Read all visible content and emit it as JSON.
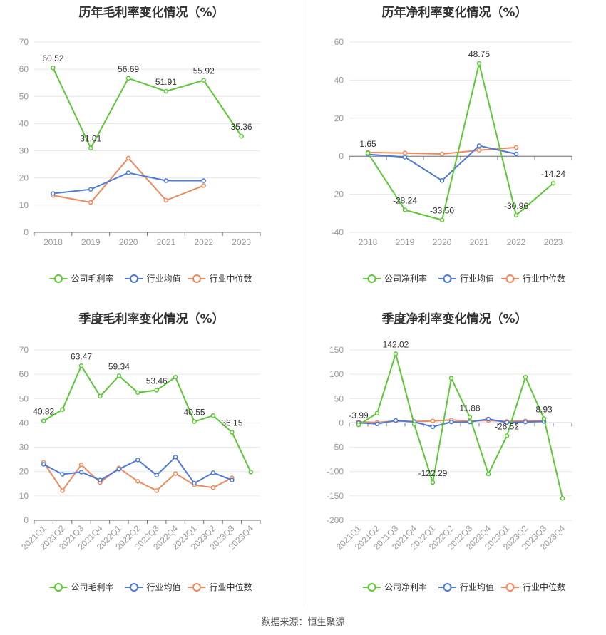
{
  "footer": {
    "source": "数据来源：恒生聚源"
  },
  "chart_data": [
    {
      "type": "line",
      "title": "历年毛利率变化情况（%）",
      "categories": [
        "2018",
        "2019",
        "2020",
        "2021",
        "2022",
        "2023"
      ],
      "ylim": [
        0,
        70
      ],
      "yticks": [
        0,
        10,
        20,
        30,
        40,
        50,
        60,
        70
      ],
      "legend_position": "bottom",
      "grid": true,
      "series": [
        {
          "name": "公司毛利率",
          "color": "#5cc836",
          "values": [
            60.52,
            31.01,
            56.69,
            51.91,
            55.92,
            35.36
          ],
          "labels": [
            "60.52",
            "31.01",
            "56.69",
            "51.91",
            "55.92",
            "35.36"
          ]
        },
        {
          "name": "行业均值",
          "color": "#4b7ad8",
          "values": [
            14.3,
            15.8,
            21.9,
            19.0,
            19.0,
            null
          ]
        },
        {
          "name": "行业中位数",
          "color": "#f0885a",
          "values": [
            13.6,
            11.0,
            27.3,
            11.8,
            17.2,
            null
          ]
        }
      ]
    },
    {
      "type": "line",
      "title": "历年净利率变化情况（%）",
      "categories": [
        "2018",
        "2019",
        "2020",
        "2021",
        "2022",
        "2023"
      ],
      "ylim": [
        -40,
        60
      ],
      "yticks": [
        -40,
        -20,
        0,
        20,
        40,
        60
      ],
      "legend_position": "bottom",
      "grid": true,
      "series": [
        {
          "name": "公司净利率",
          "color": "#5cc836",
          "values": [
            1.65,
            -28.24,
            -33.5,
            48.75,
            -30.96,
            -14.24
          ],
          "labels": [
            "1.65",
            "-28.24",
            "-33.50",
            "48.75",
            "-30.96",
            "-14.24"
          ]
        },
        {
          "name": "行业均值",
          "color": "#4b7ad8",
          "values": [
            1.0,
            -0.5,
            -12.8,
            5.5,
            1.2,
            null
          ]
        },
        {
          "name": "行业中位数",
          "color": "#f0885a",
          "values": [
            2.0,
            1.7,
            1.2,
            3.2,
            4.6,
            null
          ]
        }
      ]
    },
    {
      "type": "line",
      "title": "季度毛利率变化情况（%）",
      "categories": [
        "2021Q1",
        "2021Q2",
        "2021Q3",
        "2021Q4",
        "2022Q1",
        "2022Q2",
        "2022Q3",
        "2022Q4",
        "2023Q1",
        "2023Q2",
        "2023Q3",
        "2023Q4"
      ],
      "ylim": [
        0,
        70
      ],
      "yticks": [
        0,
        10,
        20,
        30,
        40,
        50,
        60,
        70
      ],
      "legend_position": "bottom",
      "grid": true,
      "series": [
        {
          "name": "公司毛利率",
          "color": "#5cc836",
          "values": [
            40.82,
            45.5,
            63.47,
            51.0,
            59.34,
            52.5,
            53.46,
            58.8,
            40.55,
            43.0,
            36.15,
            19.8
          ],
          "labels": [
            "40.82",
            "",
            "63.47",
            "",
            "59.34",
            "",
            "53.46",
            "",
            "40.55",
            "",
            "36.15",
            ""
          ]
        },
        {
          "name": "行业均值",
          "color": "#4b7ad8",
          "values": [
            23.0,
            18.9,
            19.8,
            16.5,
            21.0,
            24.8,
            18.5,
            26.0,
            15.2,
            19.5,
            16.5,
            null
          ]
        },
        {
          "name": "行业中位数",
          "color": "#f0885a",
          "values": [
            23.8,
            12.2,
            22.8,
            15.5,
            21.5,
            16.0,
            12.2,
            19.2,
            14.5,
            13.4,
            17.4,
            null
          ]
        }
      ]
    },
    {
      "type": "line",
      "title": "季度净利率变化情况（%）",
      "categories": [
        "2021Q1",
        "2021Q2",
        "2021Q3",
        "2021Q4",
        "2022Q1",
        "2022Q2",
        "2022Q3",
        "2022Q4",
        "2023Q1",
        "2023Q2",
        "2023Q3",
        "2023Q4"
      ],
      "ylim": [
        -200,
        150
      ],
      "yticks": [
        -200,
        -150,
        -100,
        -50,
        0,
        50,
        100,
        150
      ],
      "legend_position": "bottom",
      "grid": true,
      "series": [
        {
          "name": "公司净利率",
          "color": "#5cc836",
          "values": [
            -3.99,
            20.0,
            142.02,
            -3.0,
            -122.29,
            92.0,
            11.88,
            -105.0,
            -26.52,
            94.0,
            8.93,
            -155.0
          ],
          "labels": [
            "-3.99",
            "",
            "142.02",
            "",
            "-122.29",
            "",
            "11.88",
            "",
            "-26.52",
            "",
            "8.93",
            ""
          ]
        },
        {
          "name": "行业均值",
          "color": "#4b7ad8",
          "values": [
            0.0,
            -2.0,
            5.0,
            2.0,
            -8.0,
            2.0,
            2.0,
            8.0,
            1.0,
            2.0,
            3.0,
            null
          ]
        },
        {
          "name": "行业中位数",
          "color": "#f0885a",
          "values": [
            2.0,
            1.0,
            4.0,
            3.0,
            4.0,
            6.0,
            4.0,
            5.0,
            3.0,
            4.0,
            5.0,
            null
          ]
        }
      ]
    }
  ]
}
